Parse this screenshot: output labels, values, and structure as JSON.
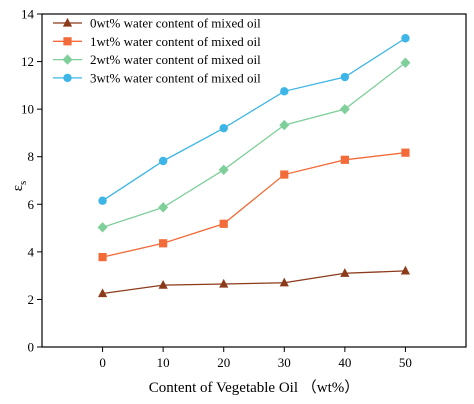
{
  "chart_data": {
    "type": "line",
    "title": "",
    "xlabel": "Content of Vegetable Oil （wt%）",
    "ylabel": "ε",
    "ylabel_sub": "s",
    "x": [
      0,
      10,
      20,
      30,
      40,
      50
    ],
    "xlim": [
      -10,
      60
    ],
    "ylim": [
      0,
      14
    ],
    "xticks": [
      0,
      10,
      20,
      30,
      40,
      50
    ],
    "yticks": [
      0,
      2,
      4,
      6,
      8,
      10,
      12,
      14
    ],
    "grid": false,
    "legend_position": "top-left",
    "series": [
      {
        "name": "0wt%  water content of mixed oil",
        "marker": "triangle",
        "color": "#8B3A1A",
        "values": [
          2.25,
          2.6,
          2.65,
          2.7,
          3.1,
          3.2
        ]
      },
      {
        "name": "1wt%  water content of mixed oil",
        "marker": "square",
        "color": "#F26B38",
        "values": [
          3.78,
          4.36,
          5.18,
          7.25,
          7.87,
          8.17
        ]
      },
      {
        "name": "2wt%  water content of mixed oil",
        "marker": "diamond",
        "color": "#7FCF9A",
        "values": [
          5.03,
          5.87,
          7.45,
          9.33,
          10.0,
          11.95
        ]
      },
      {
        "name": "3wt%  water content of mixed oil",
        "marker": "circle",
        "color": "#3DB5E6",
        "values": [
          6.15,
          7.82,
          9.2,
          10.75,
          11.35,
          12.98
        ]
      }
    ]
  }
}
